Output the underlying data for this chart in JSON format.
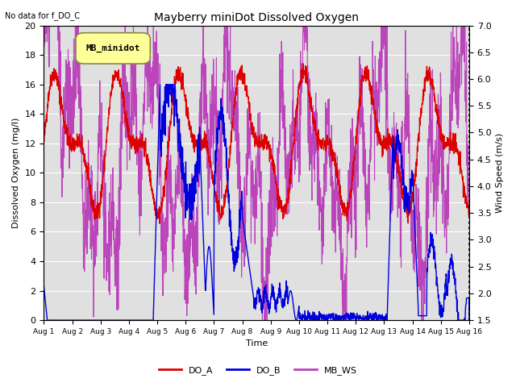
{
  "title": "Mayberry miniDot Dissolved Oxygen",
  "no_data_text": "No data for f_DO_C",
  "legend_box_text": "MB_minidot",
  "xlabel": "Time",
  "ylabel_left": "Dissolved Oxygen (mg/l)",
  "ylabel_right": "Wind Speed (m/s)",
  "ylim_left": [
    0,
    20
  ],
  "ylim_right": [
    1.5,
    7.0
  ],
  "color_DO_A": "#dd0000",
  "color_DO_B": "#0000dd",
  "color_MB_WS": "#bb44bb",
  "bg_color": "#e0e0e0",
  "legend_labels": [
    "DO_A",
    "DO_B",
    "MB_WS"
  ],
  "yticks_left": [
    0,
    2,
    4,
    6,
    8,
    10,
    12,
    14,
    16,
    18,
    20
  ],
  "yticks_right": [
    1.5,
    2.0,
    2.5,
    3.0,
    3.5,
    4.0,
    4.5,
    5.0,
    5.5,
    6.0,
    6.5,
    7.0
  ],
  "xtick_labels": [
    "Aug 1",
    "Aug 2",
    "Aug 3",
    "Aug 4",
    "Aug 5",
    "Aug 6",
    "Aug 7",
    "Aug 8",
    "Aug 9",
    "Aug 10",
    "Aug 11",
    "Aug 12",
    "Aug 13",
    "Aug 14",
    "Aug 15",
    "Aug 16"
  ]
}
